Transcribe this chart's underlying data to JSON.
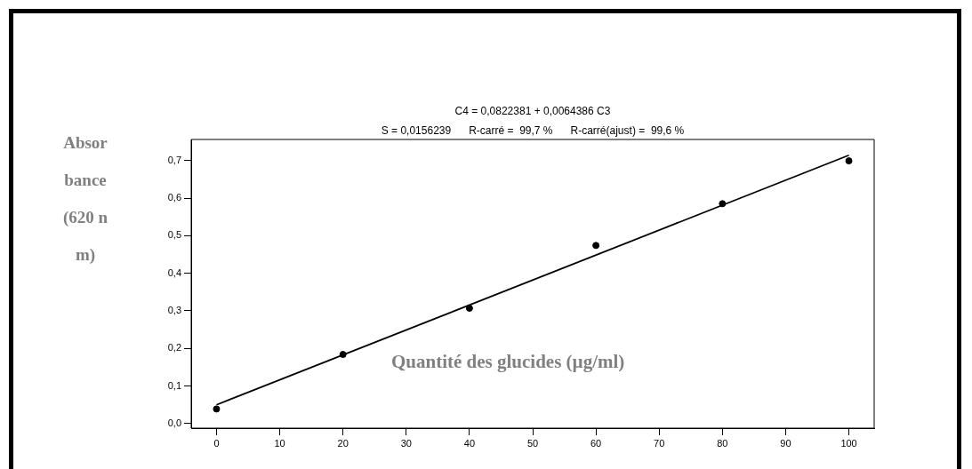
{
  "chart_data": {
    "type": "scatter",
    "title": "C4 = 0,0822381 + 0,0064386 C3",
    "subtitle": "S = 0,0156239      R-carré =  99,7 %      R-carré(ajust) =  99,6 %",
    "xlabel": "Quantité des glucides (µg/ml)",
    "ylabel": "Absorbance (620 nm)",
    "x": [
      0,
      20,
      40,
      60,
      80,
      100
    ],
    "series": [
      {
        "color": "#000000",
        "values": [
          0.039,
          0.184,
          0.307,
          0.474,
          0.585,
          0.699
        ],
        "marker": "circle"
      },
      {
        "type": "line",
        "color": "#000000",
        "x": [
          0,
          100
        ],
        "values": [
          0.05,
          0.714
        ],
        "marker": "none"
      }
    ],
    "xlim": [
      -4,
      104
    ],
    "xticks": [
      0,
      10,
      20,
      30,
      40,
      50,
      60,
      70,
      80,
      90,
      100
    ],
    "ylim": [
      -0.012,
      0.756
    ],
    "yticks": [
      {
        "value": 0,
        "label": "0,0"
      },
      {
        "value": 0.1,
        "label": "0,1"
      },
      {
        "value": 0.2,
        "label": "0,2"
      },
      {
        "value": 0.3,
        "label": "0,3"
      },
      {
        "value": 0.4,
        "label": "0,4"
      },
      {
        "value": 0.5,
        "label": "0,5"
      },
      {
        "value": 0.6,
        "label": "0,6"
      },
      {
        "value": 0.7,
        "label": "0,7"
      }
    ],
    "grid": false,
    "legend": false
  }
}
